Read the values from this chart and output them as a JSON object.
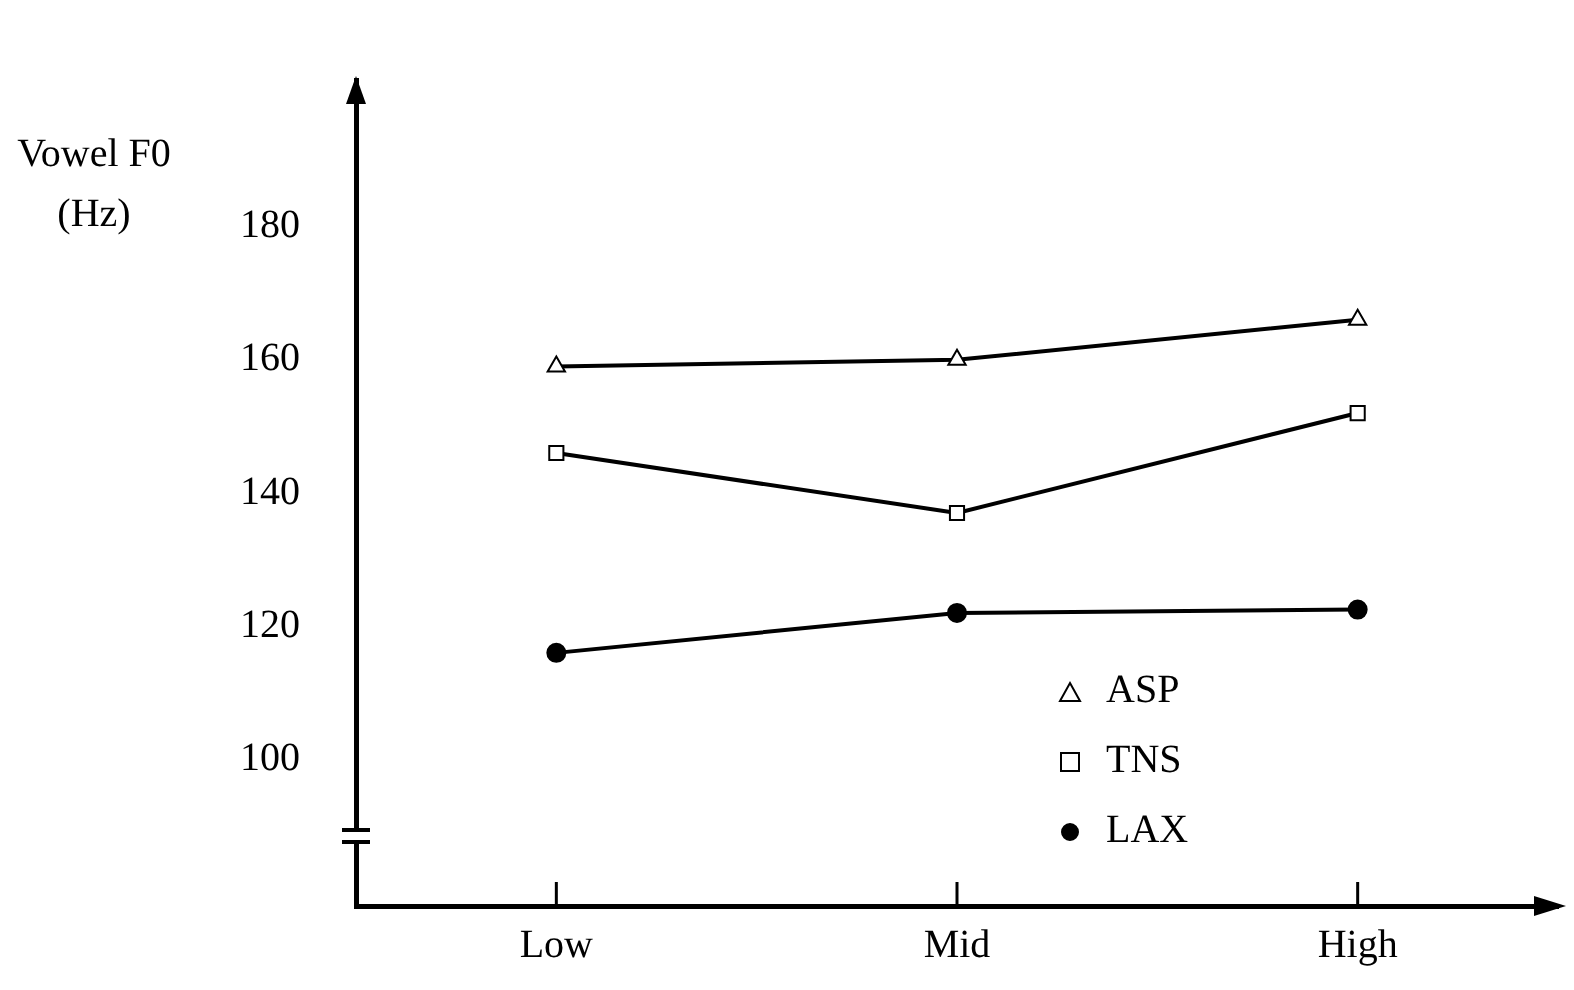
{
  "chart_data": {
    "type": "line",
    "ylabel": "Vowel F0 (Hz)",
    "categories": [
      "Low",
      "Mid",
      "High"
    ],
    "series": [
      {
        "name": "ASP",
        "color": "#000000",
        "marker": "triangle",
        "values": [
          159,
          160,
          166
        ]
      },
      {
        "name": "TNS",
        "color": "#000000",
        "marker": "square",
        "values": [
          146,
          137,
          152
        ]
      },
      {
        "name": "LAX",
        "color": "#000000",
        "marker": "circle",
        "values": [
          116,
          122,
          122.5
        ]
      }
    ],
    "ylim": [
      78,
      202
    ],
    "yticks": [
      100,
      120,
      140,
      160,
      180
    ],
    "grid": false,
    "legend": "bottom right"
  }
}
